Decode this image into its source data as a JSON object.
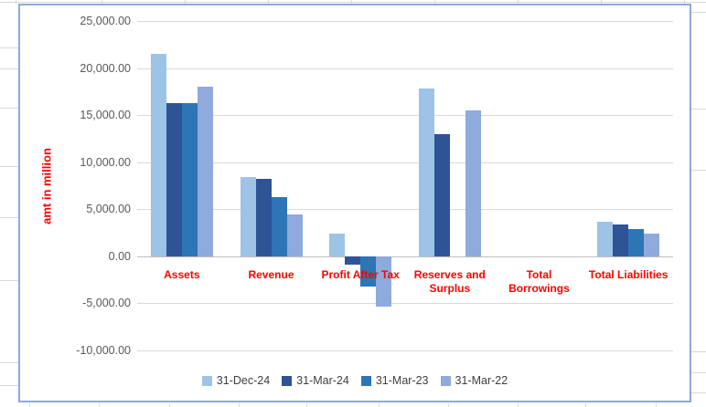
{
  "chart_data": {
    "type": "bar",
    "title": "",
    "xlabel": "",
    "ylabel": "amt in million",
    "categories": [
      "Assets",
      "Revenue",
      "Profit After Tax",
      "Reserves and Surplus",
      "Total Borrowings",
      "Total Liabilities"
    ],
    "categories_wrapped": [
      "Assets",
      "Revenue",
      "Profit After Tax",
      "Reserves and\nSurplus",
      "Total\nBorrowings",
      "Total Liabilities"
    ],
    "series": [
      {
        "name": "31-Dec-24",
        "color": "#9DC3E6",
        "values": [
          21500,
          8400,
          2400,
          17800,
          0,
          3700
        ]
      },
      {
        "name": "31-Mar-24",
        "color": "#2F5496",
        "values": [
          16300,
          8200,
          -900,
          13000,
          0,
          3400
        ]
      },
      {
        "name": "31-Mar-23",
        "color": "#2E75B6",
        "values": [
          16300,
          6300,
          -3200,
          0,
          0,
          2900
        ]
      },
      {
        "name": "31-Mar-22",
        "color": "#8FAADC",
        "values": [
          18000,
          4400,
          -5300,
          15500,
          0,
          2400
        ]
      }
    ],
    "ylim": [
      -10000,
      25000
    ],
    "ytick_step": 5000,
    "ytick_labels": [
      "25,000.00",
      "20,000.00",
      "15,000.00",
      "10,000.00",
      "5,000.00",
      "0.00",
      "-5,000.00",
      "-10,000.00"
    ],
    "grid": true,
    "legend_position": "bottom",
    "colors": {
      "category_labels": "#FF0000",
      "y_axis_title": "#FF0000",
      "axis_tick_labels": "#595959",
      "legend_text": "#404040",
      "gridline": "#D9D9D9",
      "chart_border": "#8EA9DB"
    }
  }
}
